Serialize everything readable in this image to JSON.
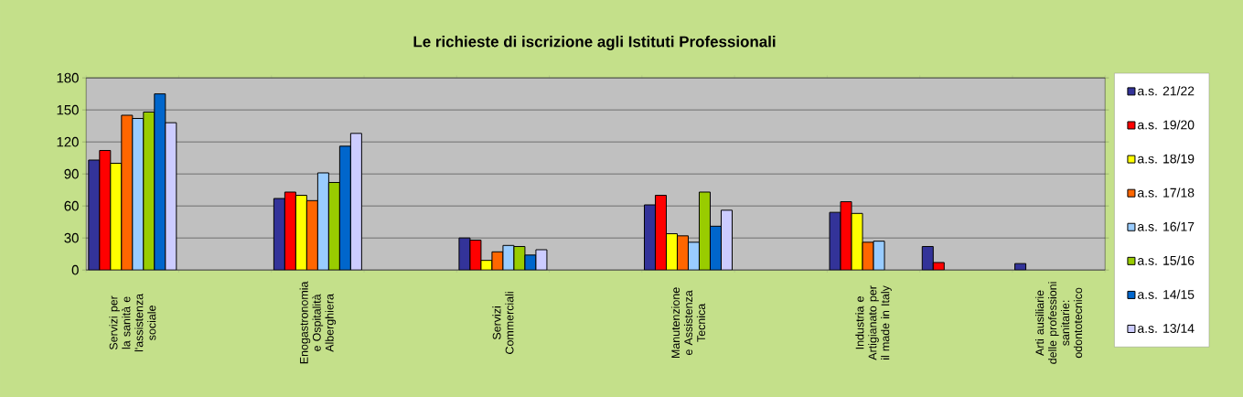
{
  "chart_data": {
    "type": "bar",
    "title": "Le richieste di iscrizione agli Istituti Professionali",
    "categories": [
      "Servizi per la sanità e l'assistenza sociale",
      null,
      "Enogastronomia e Ospitalità Alberghiera",
      null,
      "Servizi Commerciali",
      null,
      "Manutenzione e Assistenza Tecnica",
      null,
      "Industria e Artigianato per il made in Italy",
      null,
      "Arti ausiliarie delle professioni sanitarie: odontotecnico"
    ],
    "series": [
      {
        "name": "a.s. 21/22",
        "color": "#333399",
        "values": [
          103,
          null,
          67,
          null,
          30,
          null,
          61,
          null,
          54,
          22,
          6
        ]
      },
      {
        "name": "a.s. 19/20",
        "color": "#ff0000",
        "values": [
          112,
          null,
          73,
          null,
          28,
          null,
          70,
          null,
          64,
          7,
          null
        ]
      },
      {
        "name": "a.s. 18/19",
        "color": "#ffff00",
        "values": [
          100,
          null,
          70,
          null,
          9,
          null,
          34,
          null,
          53,
          null,
          null
        ]
      },
      {
        "name": "a.s. 17/18",
        "color": "#ff6600",
        "values": [
          145,
          null,
          65,
          null,
          17,
          null,
          32,
          null,
          26,
          null,
          null
        ]
      },
      {
        "name": "a.s. 16/17",
        "color": "#99ccff",
        "values": [
          142,
          null,
          91,
          null,
          23,
          null,
          26,
          null,
          27,
          null,
          null
        ]
      },
      {
        "name": "a.s. 15/16",
        "color": "#99cc00",
        "values": [
          148,
          null,
          82,
          null,
          22,
          null,
          73,
          null,
          null,
          null,
          null
        ]
      },
      {
        "name": "a.s. 14/15",
        "color": "#0066cc",
        "values": [
          165,
          null,
          116,
          null,
          14,
          null,
          41,
          null,
          null,
          null,
          null
        ]
      },
      {
        "name": "a.s. 13/14",
        "color": "#ccccff",
        "values": [
          138,
          null,
          128,
          null,
          19,
          null,
          56,
          null,
          null,
          null,
          null
        ]
      }
    ],
    "ylim": [
      0,
      180
    ],
    "yticks": [
      0,
      30,
      60,
      90,
      120,
      150,
      180
    ],
    "grid": "y",
    "legend": "right"
  }
}
